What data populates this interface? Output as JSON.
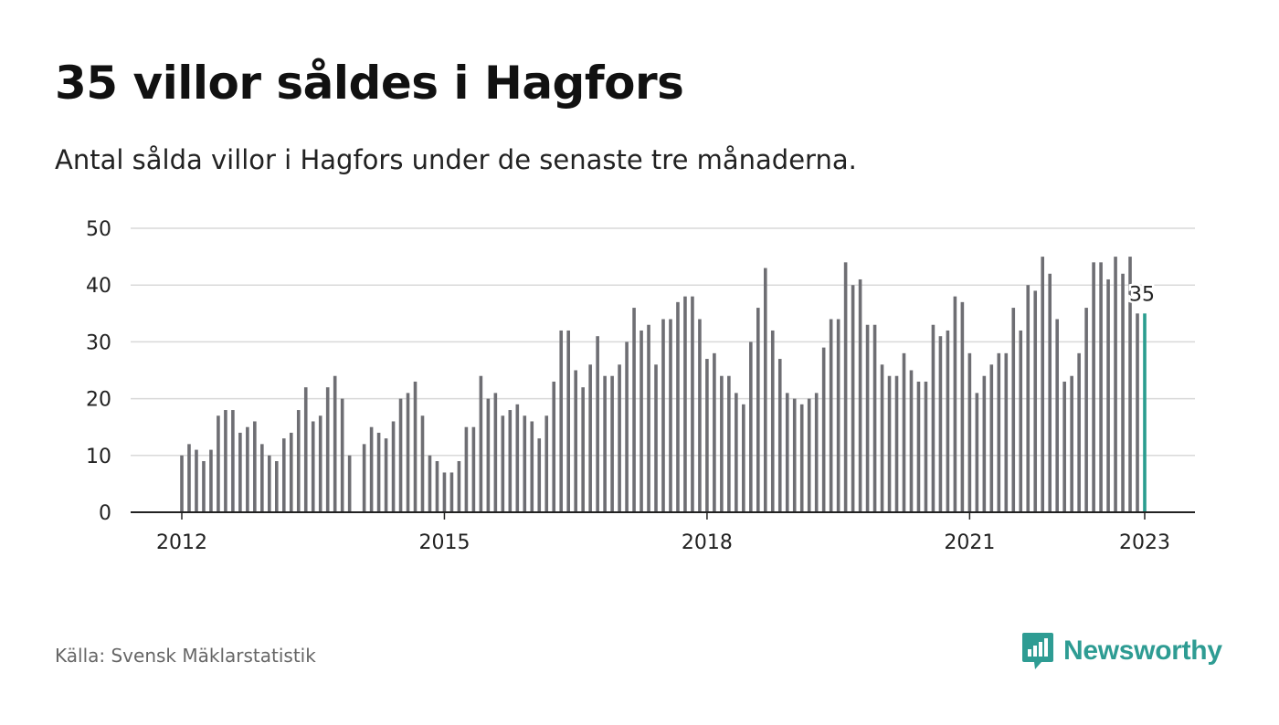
{
  "header": {
    "title": "35 villor såldes i Hagfors",
    "subtitle": "Antal sålda villor i Hagfors under de senaste tre månaderna."
  },
  "footer": {
    "source": "Källa: Svensk Mäklarstatistik",
    "brand": "Newsworthy",
    "brand_icon": "newsworthy-logo-icon"
  },
  "colors": {
    "bar": "#6e6e73",
    "highlight": "#2a9d8f",
    "grid": "#d9d9d9",
    "brand": "#2e9c93"
  },
  "chart_data": {
    "type": "bar",
    "title": "35 villor såldes i Hagfors",
    "xlabel": "",
    "ylabel": "",
    "ylim": [
      0,
      50
    ],
    "yticks": [
      0,
      10,
      20,
      30,
      40,
      50
    ],
    "xtick_labels": [
      "2012",
      "2015",
      "2018",
      "2021",
      "2023"
    ],
    "grid": true,
    "legend": "none",
    "start": "2012-01",
    "end": "2023-01",
    "highlight_label": "35",
    "values": [
      10,
      12,
      11,
      9,
      11,
      17,
      18,
      18,
      14,
      15,
      16,
      12,
      10,
      9,
      13,
      14,
      18,
      22,
      16,
      17,
      22,
      24,
      20,
      10,
      0,
      12,
      15,
      14,
      13,
      16,
      20,
      21,
      23,
      17,
      10,
      9,
      7,
      7,
      9,
      15,
      15,
      24,
      20,
      21,
      17,
      18,
      19,
      17,
      16,
      13,
      17,
      23,
      32,
      32,
      25,
      22,
      26,
      31,
      24,
      24,
      26,
      30,
      36,
      32,
      33,
      26,
      34,
      34,
      37,
      38,
      38,
      34,
      27,
      28,
      24,
      24,
      21,
      19,
      30,
      36,
      43,
      32,
      27,
      21,
      20,
      19,
      20,
      21,
      29,
      34,
      34,
      44,
      40,
      41,
      33,
      33,
      26,
      24,
      24,
      28,
      25,
      23,
      23,
      33,
      31,
      32,
      38,
      37,
      28,
      21,
      24,
      26,
      28,
      28,
      36,
      32,
      40,
      39,
      45,
      42,
      34,
      23,
      24,
      28,
      36,
      44,
      44,
      41,
      45,
      42,
      45,
      35,
      35
    ]
  }
}
